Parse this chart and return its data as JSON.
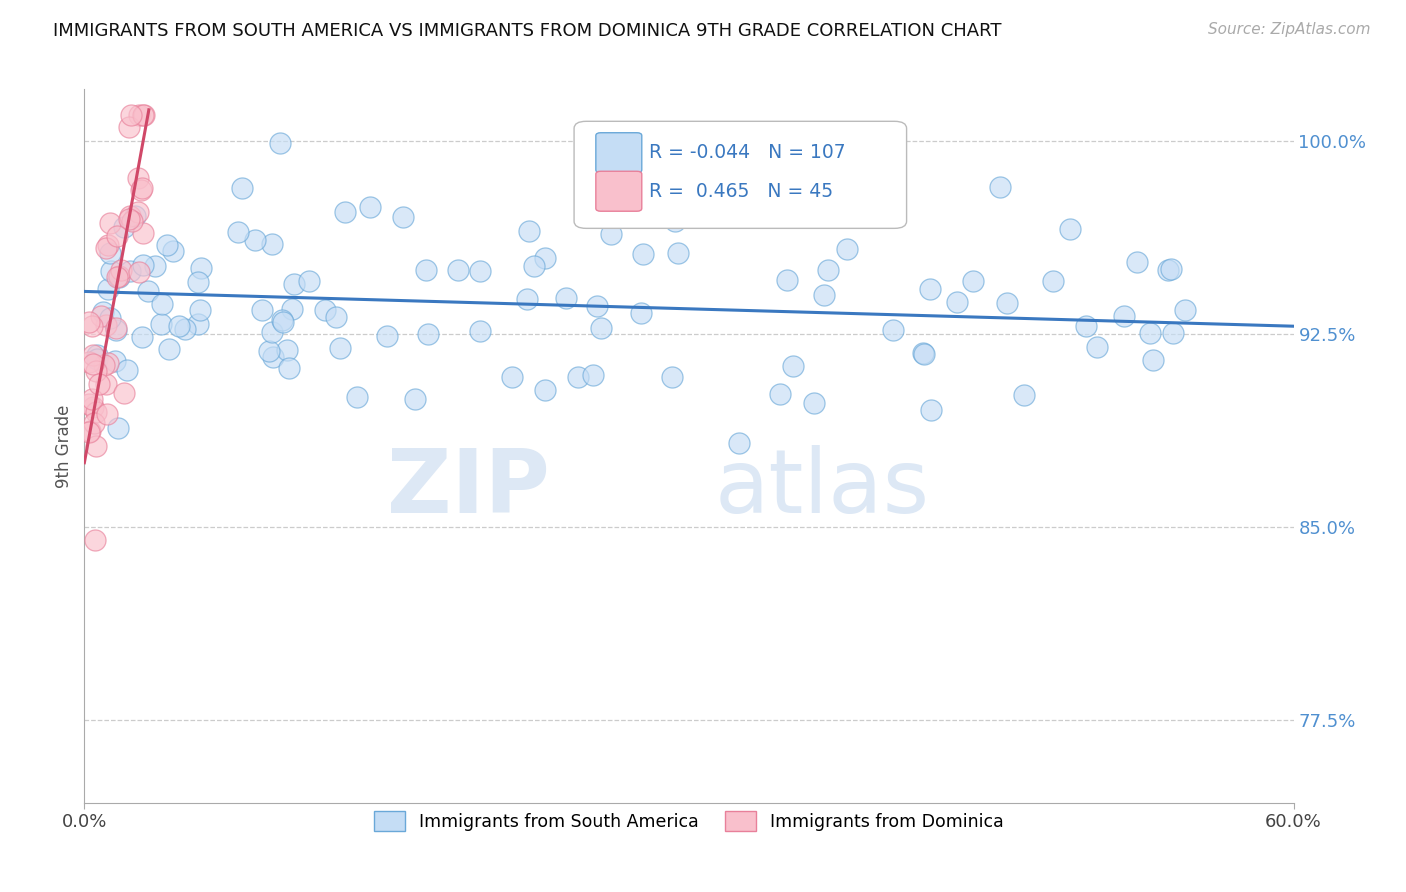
{
  "title": "IMMIGRANTS FROM SOUTH AMERICA VS IMMIGRANTS FROM DOMINICA 9TH GRADE CORRELATION CHART",
  "source": "Source: ZipAtlas.com",
  "ylabel": "9th Grade",
  "xlim": [
    0.0,
    0.6
  ],
  "ylim": [
    0.743,
    1.02
  ],
  "x_tick_positions": [
    0.0,
    0.6
  ],
  "x_tick_labels": [
    "0.0%",
    "60.0%"
  ],
  "y_tick_positions": [
    0.775,
    0.85,
    0.925,
    1.0
  ],
  "y_tick_labels": [
    "77.5%",
    "85.0%",
    "92.5%",
    "100.0%"
  ],
  "blue_R": -0.044,
  "blue_N": 107,
  "pink_R": 0.465,
  "pink_N": 45,
  "blue_fill_color": "#c5ddf5",
  "pink_fill_color": "#f9c0cc",
  "blue_edge_color": "#6aa8d8",
  "pink_edge_color": "#e8809a",
  "blue_line_color": "#3a78c0",
  "pink_line_color": "#d04868",
  "tick_label_color": "#5090d0",
  "legend_label_blue": "Immigrants from South America",
  "legend_label_pink": "Immigrants from Dominica",
  "watermark_zip": "ZIP",
  "watermark_atlas": "atlas",
  "blue_trend_x0": 0.0,
  "blue_trend_y0": 0.9415,
  "blue_trend_x1": 0.6,
  "blue_trend_y1": 0.928,
  "pink_trend_x0": 0.0,
  "pink_trend_y0": 0.875,
  "pink_trend_x1": 0.032,
  "pink_trend_y1": 1.012
}
